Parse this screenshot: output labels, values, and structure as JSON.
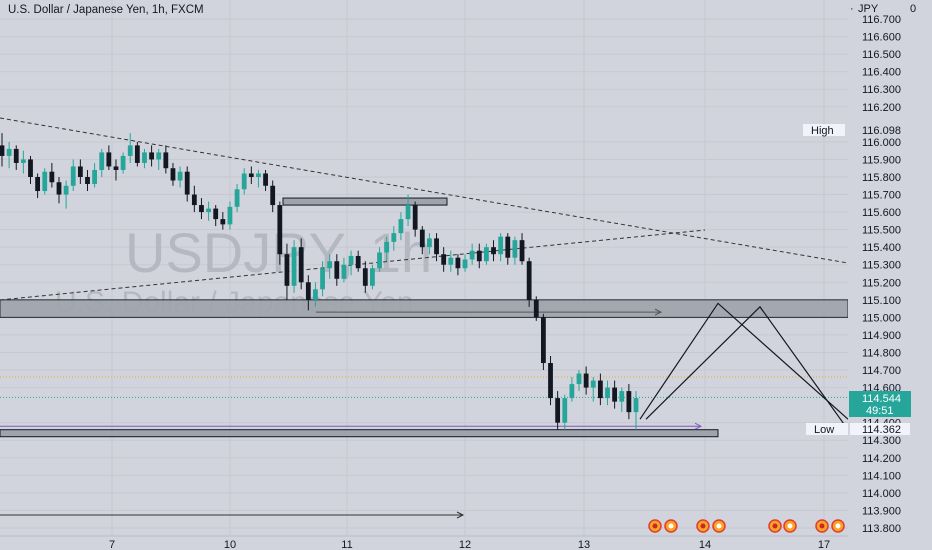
{
  "title": "U.S. Dollar / Japanese Yen, 1h, FXCM",
  "currency": "JPY",
  "currency_menu": "0",
  "watermark": {
    "symbol": "USDJPY, 1h",
    "name": "U.S. Dollar / Japanese Yen"
  },
  "colors": {
    "bg": "#d1d4dc",
    "up": "#26a69a",
    "down": "#131722",
    "zone": "#a0a4ad",
    "price_tag": "#26a69a"
  },
  "price_labels": {
    "high_label": "High",
    "high_value": "116.098",
    "low_label": "Low",
    "low_value": "114.362",
    "current_price": "114.544",
    "countdown": "49:51"
  },
  "chart_data": {
    "type": "candlestick",
    "title": "U.S. Dollar / Japanese Yen, 1h, FXCM",
    "y_ticks": [
      "116.700",
      "116.600",
      "116.500",
      "116.400",
      "116.300",
      "116.200",
      "116.000",
      "115.900",
      "115.800",
      "115.700",
      "115.600",
      "115.500",
      "115.400",
      "115.300",
      "115.200",
      "115.100",
      "115.000",
      "114.900",
      "114.800",
      "114.700",
      "114.600",
      "114.400",
      "114.300",
      "114.200",
      "114.100",
      "114.000",
      "113.900",
      "113.800"
    ],
    "x_ticks": [
      "7",
      "10",
      "11",
      "12",
      "13",
      "14",
      "17"
    ],
    "ylim": [
      113.76,
      116.78
    ],
    "high": 116.098,
    "low": 114.362,
    "last": 114.544,
    "candles": [
      [
        115.98,
        116.05,
        115.86,
        115.92
      ],
      [
        115.92,
        116.0,
        115.85,
        115.96
      ],
      [
        115.96,
        115.98,
        115.84,
        115.88
      ],
      [
        115.88,
        115.95,
        115.82,
        115.9
      ],
      [
        115.9,
        115.92,
        115.76,
        115.8
      ],
      [
        115.8,
        115.82,
        115.68,
        115.72
      ],
      [
        115.72,
        115.85,
        115.7,
        115.83
      ],
      [
        115.83,
        115.88,
        115.74,
        115.77
      ],
      [
        115.77,
        115.8,
        115.65,
        115.7
      ],
      [
        115.7,
        115.78,
        115.62,
        115.75
      ],
      [
        115.75,
        115.9,
        115.72,
        115.86
      ],
      [
        115.86,
        115.9,
        115.76,
        115.8
      ],
      [
        115.8,
        115.84,
        115.72,
        115.76
      ],
      [
        115.76,
        115.88,
        115.74,
        115.84
      ],
      [
        115.84,
        115.96,
        115.8,
        115.94
      ],
      [
        115.94,
        115.98,
        115.84,
        115.86
      ],
      [
        115.86,
        115.9,
        115.78,
        115.84
      ],
      [
        115.84,
        115.94,
        115.82,
        115.92
      ],
      [
        115.92,
        116.05,
        115.88,
        115.98
      ],
      [
        115.98,
        116.0,
        115.86,
        115.88
      ],
      [
        115.88,
        115.96,
        115.85,
        115.94
      ],
      [
        115.94,
        115.98,
        115.86,
        115.9
      ],
      [
        115.9,
        115.96,
        115.84,
        115.94
      ],
      [
        115.94,
        115.98,
        115.82,
        115.85
      ],
      [
        115.85,
        115.88,
        115.75,
        115.78
      ],
      [
        115.78,
        115.86,
        115.74,
        115.83
      ],
      [
        115.83,
        115.86,
        115.66,
        115.7
      ],
      [
        115.7,
        115.75,
        115.6,
        115.64
      ],
      [
        115.64,
        115.68,
        115.56,
        115.6
      ],
      [
        115.6,
        115.66,
        115.55,
        115.62
      ],
      [
        115.62,
        115.64,
        115.52,
        115.56
      ],
      [
        115.56,
        115.6,
        115.5,
        115.53
      ],
      [
        115.53,
        115.66,
        115.5,
        115.63
      ],
      [
        115.63,
        115.76,
        115.6,
        115.73
      ],
      [
        115.73,
        115.85,
        115.7,
        115.82
      ],
      [
        115.82,
        115.86,
        115.76,
        115.8
      ],
      [
        115.8,
        115.84,
        115.74,
        115.82
      ],
      [
        115.82,
        115.84,
        115.72,
        115.75
      ],
      [
        115.75,
        115.78,
        115.6,
        115.64
      ],
      [
        115.64,
        115.66,
        115.3,
        115.36
      ],
      [
        115.36,
        115.42,
        115.1,
        115.18
      ],
      [
        115.18,
        115.44,
        115.14,
        115.4
      ],
      [
        115.4,
        115.45,
        115.16,
        115.2
      ],
      [
        115.2,
        115.24,
        115.04,
        115.1
      ],
      [
        115.1,
        115.2,
        115.06,
        115.16
      ],
      [
        115.16,
        115.32,
        115.12,
        115.28
      ],
      [
        115.28,
        115.36,
        115.22,
        115.32
      ],
      [
        115.32,
        115.36,
        115.18,
        115.22
      ],
      [
        115.22,
        115.34,
        115.2,
        115.3
      ],
      [
        115.3,
        115.38,
        115.24,
        115.35
      ],
      [
        115.35,
        115.38,
        115.26,
        115.28
      ],
      [
        115.28,
        115.32,
        115.14,
        115.18
      ],
      [
        115.18,
        115.3,
        115.16,
        115.28
      ],
      [
        115.28,
        115.4,
        115.26,
        115.37
      ],
      [
        115.37,
        115.46,
        115.32,
        115.43
      ],
      [
        115.43,
        115.52,
        115.38,
        115.48
      ],
      [
        115.48,
        115.6,
        115.44,
        115.56
      ],
      [
        115.56,
        115.7,
        115.52,
        115.64
      ],
      [
        115.64,
        115.66,
        115.46,
        115.5
      ],
      [
        115.5,
        115.52,
        115.36,
        115.4
      ],
      [
        115.4,
        115.48,
        115.36,
        115.45
      ],
      [
        115.45,
        115.48,
        115.32,
        115.36
      ],
      [
        115.36,
        115.4,
        115.26,
        115.3
      ],
      [
        115.3,
        115.38,
        115.26,
        115.34
      ],
      [
        115.34,
        115.36,
        115.24,
        115.28
      ],
      [
        115.28,
        115.36,
        115.26,
        115.33
      ],
      [
        115.33,
        115.42,
        115.3,
        115.38
      ],
      [
        115.38,
        115.42,
        115.28,
        115.32
      ],
      [
        115.32,
        115.42,
        115.3,
        115.4
      ],
      [
        115.4,
        115.44,
        115.32,
        115.36
      ],
      [
        115.36,
        115.48,
        115.32,
        115.46
      ],
      [
        115.46,
        115.48,
        115.3,
        115.34
      ],
      [
        115.34,
        115.46,
        115.3,
        115.44
      ],
      [
        115.44,
        115.48,
        115.3,
        115.32
      ],
      [
        115.32,
        115.34,
        115.06,
        115.1
      ],
      [
        115.1,
        115.12,
        114.98,
        115.0
      ],
      [
        115.0,
        115.02,
        114.7,
        114.74
      ],
      [
        114.74,
        114.78,
        114.5,
        114.54
      ],
      [
        114.54,
        114.58,
        114.36,
        114.4
      ],
      [
        114.4,
        114.56,
        114.36,
        114.54
      ],
      [
        114.54,
        114.66,
        114.52,
        114.62
      ],
      [
        114.62,
        114.7,
        114.58,
        114.68
      ],
      [
        114.68,
        114.72,
        114.56,
        114.6
      ],
      [
        114.6,
        114.66,
        114.52,
        114.64
      ],
      [
        114.64,
        114.68,
        114.5,
        114.54
      ],
      [
        114.54,
        114.64,
        114.5,
        114.6
      ],
      [
        114.6,
        114.64,
        114.48,
        114.52
      ],
      [
        114.52,
        114.6,
        114.46,
        114.58
      ],
      [
        114.58,
        114.62,
        114.42,
        114.46
      ],
      [
        114.46,
        114.58,
        114.36,
        114.54
      ]
    ],
    "zones": [
      {
        "from": 115.0,
        "to": 115.1
      },
      {
        "from": 114.32,
        "to": 114.36
      },
      {
        "from": 115.64,
        "to": 115.68
      }
    ]
  },
  "bottom_icons": [
    "us-flag-event-icon",
    "jp-flag-event-icon",
    "event-icon",
    "event-icon",
    "us-flag-event-icon",
    "event-icon",
    "event-icon",
    "event-icon"
  ]
}
